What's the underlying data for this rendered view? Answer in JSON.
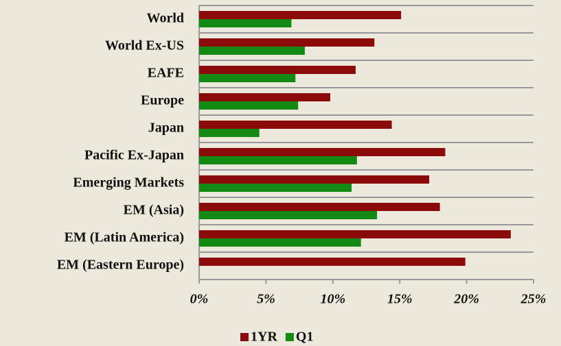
{
  "chart_data": {
    "type": "hbar",
    "categories": [
      "World",
      "World Ex-US",
      "EAFE",
      "Europe",
      "Japan",
      "Pacific Ex-Japan",
      "Emerging Markets",
      "EM (Asia)",
      "EM (Latin America)",
      "EM (Eastern Europe)"
    ],
    "series": [
      {
        "name": "1YR",
        "color": "#8b0a0a",
        "values": [
          15.1,
          13.1,
          11.7,
          9.8,
          14.4,
          18.4,
          17.2,
          18.0,
          23.3,
          19.9
        ]
      },
      {
        "name": "Q1",
        "color": "#138a13",
        "values": [
          6.9,
          7.9,
          7.2,
          7.4,
          4.5,
          11.8,
          11.4,
          13.3,
          12.1,
          null
        ]
      }
    ],
    "xlim": [
      0,
      25
    ],
    "xticks": [
      {
        "value": 0,
        "label": "0%"
      },
      {
        "value": 5,
        "label": "5%"
      },
      {
        "value": 10,
        "label": "10%"
      },
      {
        "value": 15,
        "label": "15%"
      },
      {
        "value": 20,
        "label": "20%"
      },
      {
        "value": 25,
        "label": "25%"
      }
    ],
    "legend": "bottom"
  }
}
